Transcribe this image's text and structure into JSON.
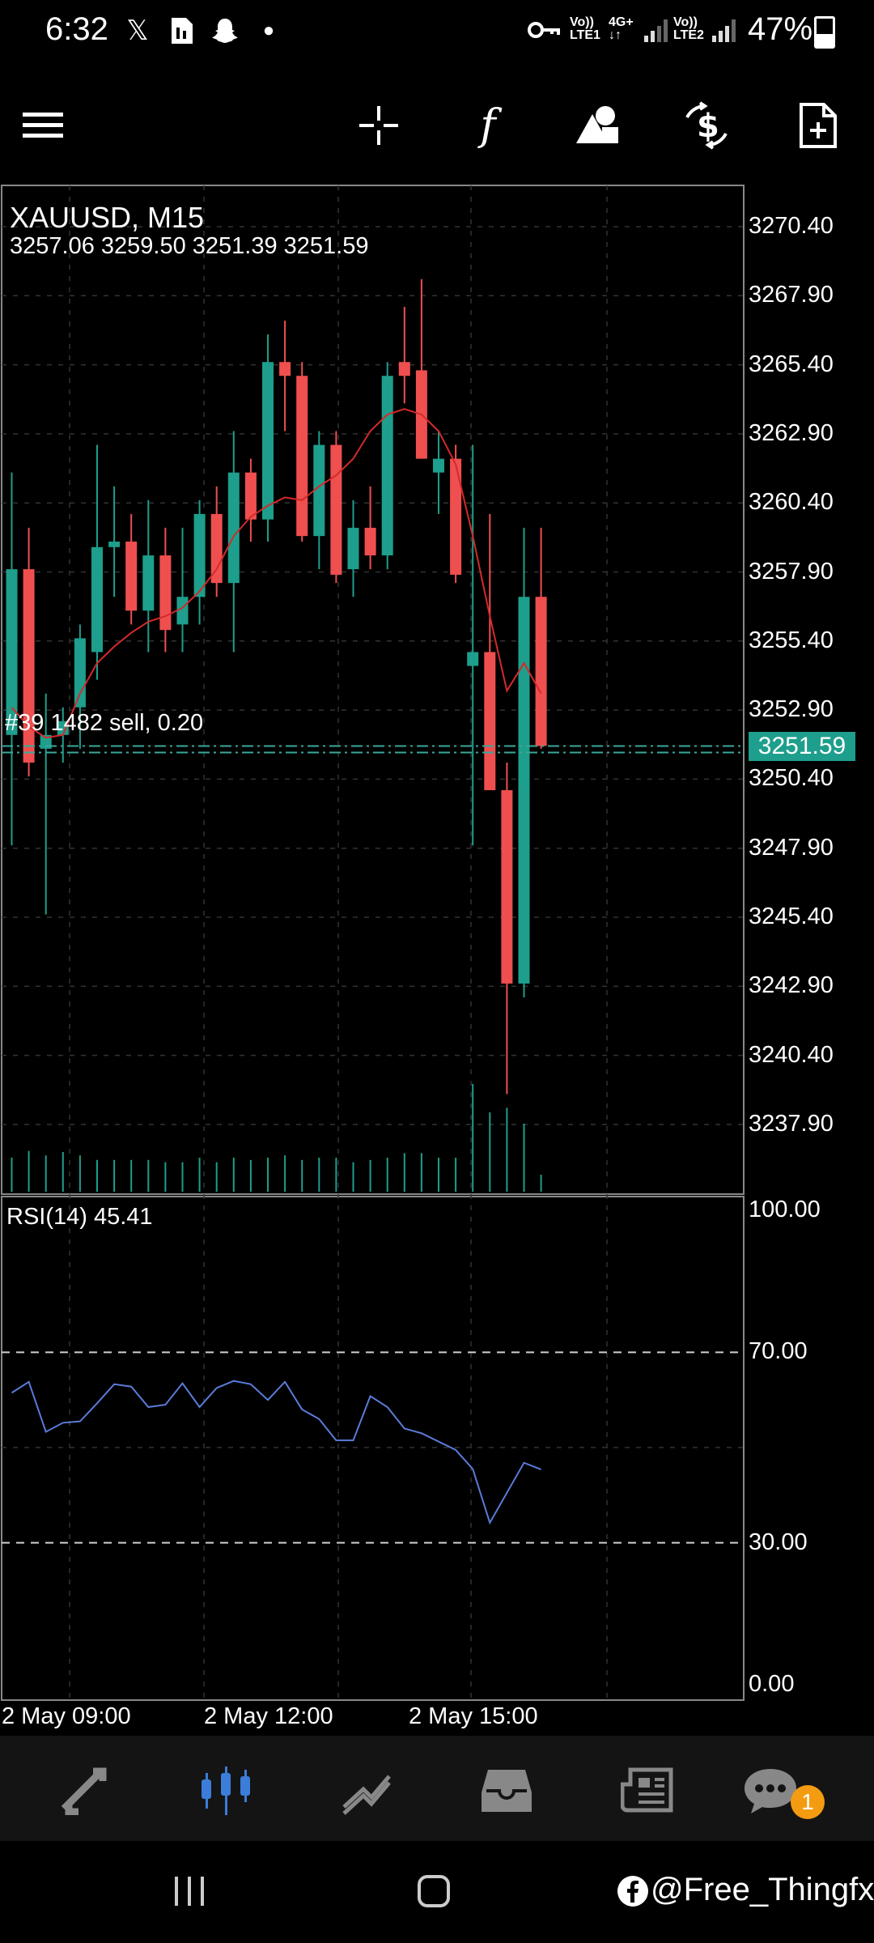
{
  "status_bar": {
    "time": "6:32",
    "notification_icons": [
      "x-icon",
      "sim-icon",
      "snapchat-icon",
      "dot-icon"
    ],
    "sim1_top": "Vo))",
    "sim1_bottom": "LTE1",
    "sim1_net": "4G+",
    "sim2_top": "Vo))",
    "sim2_bottom": "LTE2",
    "battery": "47%"
  },
  "toolbar": {
    "menu_icon": "hamburger-icon",
    "crosshair_icon": "crosshair-icon",
    "indicators_label": "f",
    "objects_icon": "shapes-icon",
    "trade_icon": "dollar-exchange-icon",
    "new_order_icon": "add-document-icon"
  },
  "chart": {
    "symbol": "XAUUSD, M15",
    "ohlc": "3257.06 3259.50 3251.39 3251.59",
    "order_line": "#39 1482 sell, 0.20",
    "current_price": "3251.59",
    "price_axis": [
      "3270.40",
      "3267.90",
      "3265.40",
      "3262.90",
      "3260.40",
      "3257.90",
      "3255.40",
      "3252.90",
      "3250.40",
      "3247.90",
      "3245.40",
      "3242.90",
      "3240.40",
      "3237.90"
    ],
    "rsi_label": "RSI(14) 45.41",
    "rsi_levels": [
      "100.00",
      "70.00",
      "30.00",
      "0.00"
    ],
    "time_axis": [
      "2 May 09:00",
      "2 May 12:00",
      "2 May 15:00"
    ],
    "colors": {
      "bull": "#1e9e8c",
      "bear": "#ef4f4f",
      "ma": "#d42a2a",
      "rsi": "#5b7bd8",
      "grid": "#333333"
    }
  },
  "chart_data": {
    "type": "candlestick",
    "title": "XAUUSD, M15",
    "ylim": [
      3235.0,
      3271.5
    ],
    "candles": [
      {
        "o": 3252.0,
        "h": 3261.5,
        "l": 3248.0,
        "c": 3258.0
      },
      {
        "o": 3258.0,
        "h": 3259.5,
        "l": 3250.5,
        "c": 3251.0
      },
      {
        "o": 3251.5,
        "h": 3253.5,
        "l": 3245.5,
        "c": 3252.0
      },
      {
        "o": 3252.0,
        "h": 3253.0,
        "l": 3251.0,
        "c": 3252.5
      },
      {
        "o": 3253.0,
        "h": 3256.0,
        "l": 3251.5,
        "c": 3255.5
      },
      {
        "o": 3255.0,
        "h": 3262.5,
        "l": 3254.0,
        "c": 3258.8
      },
      {
        "o": 3258.8,
        "h": 3261.0,
        "l": 3257.0,
        "c": 3259.0
      },
      {
        "o": 3259.0,
        "h": 3260.0,
        "l": 3256.0,
        "c": 3256.5
      },
      {
        "o": 3256.5,
        "h": 3260.5,
        "l": 3255.0,
        "c": 3258.5
      },
      {
        "o": 3258.5,
        "h": 3259.5,
        "l": 3255.0,
        "c": 3255.8
      },
      {
        "o": 3256.0,
        "h": 3259.5,
        "l": 3255.0,
        "c": 3257.0
      },
      {
        "o": 3257.0,
        "h": 3260.5,
        "l": 3256.0,
        "c": 3260.0
      },
      {
        "o": 3260.0,
        "h": 3261.0,
        "l": 3257.0,
        "c": 3257.5
      },
      {
        "o": 3257.5,
        "h": 3263.0,
        "l": 3255.0,
        "c": 3261.5
      },
      {
        "o": 3261.5,
        "h": 3262.0,
        "l": 3259.0,
        "c": 3259.8
      },
      {
        "o": 3259.8,
        "h": 3266.5,
        "l": 3259.0,
        "c": 3265.5
      },
      {
        "o": 3265.5,
        "h": 3267.0,
        "l": 3263.0,
        "c": 3265.0
      },
      {
        "o": 3265.0,
        "h": 3265.5,
        "l": 3259.0,
        "c": 3259.2
      },
      {
        "o": 3259.2,
        "h": 3263.0,
        "l": 3258.0,
        "c": 3262.5
      },
      {
        "o": 3262.5,
        "h": 3263.0,
        "l": 3257.5,
        "c": 3257.8
      },
      {
        "o": 3258.0,
        "h": 3260.5,
        "l": 3257.0,
        "c": 3259.5
      },
      {
        "o": 3259.5,
        "h": 3261.0,
        "l": 3258.0,
        "c": 3258.5
      },
      {
        "o": 3258.5,
        "h": 3265.5,
        "l": 3258.0,
        "c": 3265.0
      },
      {
        "o": 3265.5,
        "h": 3267.5,
        "l": 3264.0,
        "c": 3265.0
      },
      {
        "o": 3265.2,
        "h": 3268.5,
        "l": 3262.0,
        "c": 3262.0
      },
      {
        "o": 3261.5,
        "h": 3263.0,
        "l": 3260.0,
        "c": 3262.0
      },
      {
        "o": 3262.0,
        "h": 3262.5,
        "l": 3257.5,
        "c": 3257.8
      },
      {
        "o": 3254.5,
        "h": 3262.5,
        "l": 3248.0,
        "c": 3255.0
      },
      {
        "o": 3255.0,
        "h": 3260.0,
        "l": 3250.0,
        "c": 3250.0
      },
      {
        "o": 3250.0,
        "h": 3251.0,
        "l": 3239.0,
        "c": 3243.0
      },
      {
        "o": 3243.0,
        "h": 3259.5,
        "l": 3242.5,
        "c": 3257.0
      },
      {
        "o": 3257.0,
        "h": 3259.5,
        "l": 3251.5,
        "c": 3251.6
      }
    ],
    "ma": [
      3253.0,
      3252.3,
      3251.9,
      3252.0,
      3253.5,
      3254.6,
      3255.2,
      3255.7,
      3256.1,
      3256.3,
      3256.6,
      3257.2,
      3258.0,
      3259.2,
      3259.9,
      3260.3,
      3260.6,
      3260.5,
      3261.0,
      3261.4,
      3262.0,
      3263.0,
      3263.6,
      3263.8,
      3263.6,
      3263.0,
      3261.8,
      3259.2,
      3256.3,
      3253.6,
      3254.6,
      3253.5
    ],
    "volume": [
      0.3,
      0.36,
      0.32,
      0.35,
      0.32,
      0.28,
      0.28,
      0.28,
      0.28,
      0.26,
      0.26,
      0.3,
      0.26,
      0.3,
      0.28,
      0.3,
      0.32,
      0.28,
      0.3,
      0.3,
      0.26,
      0.28,
      0.3,
      0.34,
      0.34,
      0.3,
      0.3,
      0.95,
      0.7,
      0.74,
      0.6,
      0.15
    ],
    "rsi_y": [
      61.5,
      63.8,
      53.3,
      55.2,
      55.5,
      59.3,
      63.3,
      62.8,
      58.5,
      59.0,
      63.5,
      58.5,
      62.5,
      64.0,
      63.3,
      60.0,
      63.8,
      58.0,
      56.0,
      51.5,
      51.5,
      60.8,
      58.5,
      54.0,
      53.0,
      49.5,
      45.5,
      34.2,
      46.8,
      45.4
    ],
    "rsi_x": [
      0,
      1,
      2,
      3,
      4,
      5,
      6,
      7,
      8,
      9,
      10,
      11,
      12,
      13,
      14,
      15,
      16,
      17,
      18,
      19,
      20,
      21,
      22,
      23,
      24,
      26,
      27,
      28,
      30,
      31
    ]
  },
  "bottom_nav": {
    "items": [
      "quotes-icon",
      "chart-icon",
      "trade-icon",
      "history-icon",
      "news-icon",
      "chat-icon"
    ],
    "active_index": 1,
    "badge": "1"
  },
  "system_nav": {
    "watermark": "@Free_Thingfx"
  }
}
